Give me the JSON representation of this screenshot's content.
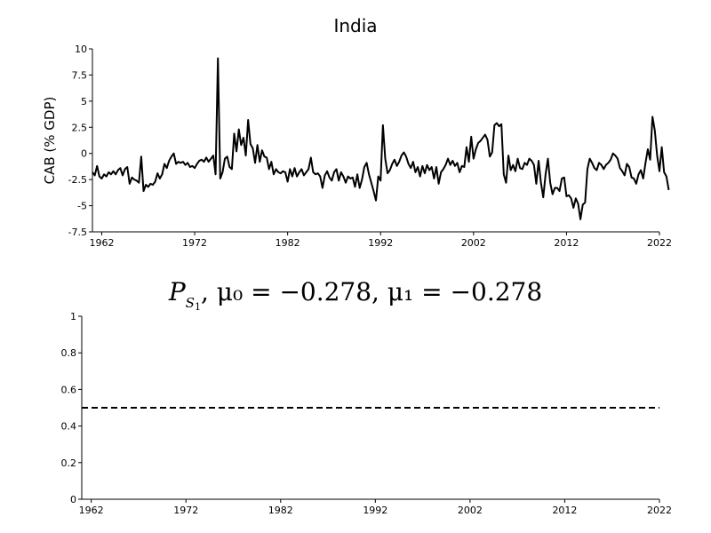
{
  "chart_data": [
    {
      "type": "line",
      "title": "India",
      "ylabel": "CAB (% GDP)",
      "xlabel": "",
      "xlim": [
        1961,
        2022
      ],
      "ylim": [
        -7.5,
        10
      ],
      "xticks": [
        1962,
        1972,
        1982,
        1992,
        2002,
        2012,
        2022
      ],
      "yticks": [
        -7.5,
        -5,
        -2.5,
        0,
        2.5,
        5,
        7.5,
        10
      ],
      "ytick_labels": [
        "-7.5",
        "-5",
        "-2.5",
        "0",
        "2.5",
        "5",
        "7.5",
        "10"
      ],
      "grid": false,
      "color": "#000000",
      "series": [
        {
          "values": [
            [
              1961.0,
              -1.8
            ],
            [
              1961.25,
              -2.1
            ],
            [
              1961.5,
              -1.2
            ],
            [
              1961.75,
              -2.2
            ],
            [
              1962.0,
              -2.4
            ],
            [
              1962.25,
              -2.0
            ],
            [
              1962.5,
              -2.2
            ],
            [
              1962.75,
              -1.8
            ],
            [
              1963.0,
              -2.0
            ],
            [
              1963.25,
              -1.7
            ],
            [
              1963.5,
              -2.0
            ],
            [
              1963.75,
              -1.6
            ],
            [
              1964.0,
              -1.4
            ],
            [
              1964.25,
              -2.1
            ],
            [
              1964.5,
              -1.5
            ],
            [
              1964.75,
              -1.3
            ],
            [
              1965.0,
              -2.9
            ],
            [
              1965.25,
              -2.3
            ],
            [
              1965.5,
              -2.5
            ],
            [
              1965.75,
              -2.6
            ],
            [
              1966.0,
              -2.8
            ],
            [
              1966.25,
              -0.3
            ],
            [
              1966.5,
              -3.6
            ],
            [
              1966.75,
              -3.0
            ],
            [
              1967.0,
              -3.2
            ],
            [
              1967.25,
              -2.9
            ],
            [
              1967.5,
              -3.0
            ],
            [
              1967.75,
              -2.7
            ],
            [
              1968.0,
              -1.9
            ],
            [
              1968.25,
              -2.4
            ],
            [
              1968.5,
              -2.0
            ],
            [
              1968.75,
              -1.0
            ],
            [
              1969.0,
              -1.4
            ],
            [
              1969.25,
              -0.7
            ],
            [
              1969.5,
              -0.3
            ],
            [
              1969.75,
              0.0
            ],
            [
              1970.0,
              -1.0
            ],
            [
              1970.25,
              -0.8
            ],
            [
              1970.5,
              -0.9
            ],
            [
              1970.75,
              -0.8
            ],
            [
              1971.0,
              -1.1
            ],
            [
              1971.25,
              -0.9
            ],
            [
              1971.5,
              -1.3
            ],
            [
              1971.75,
              -1.2
            ],
            [
              1972.0,
              -1.4
            ],
            [
              1972.25,
              -1.0
            ],
            [
              1972.5,
              -0.7
            ],
            [
              1972.75,
              -0.6
            ],
            [
              1973.0,
              -0.8
            ],
            [
              1973.25,
              -0.4
            ],
            [
              1973.5,
              -0.8
            ],
            [
              1973.75,
              -0.5
            ],
            [
              1974.0,
              -0.2
            ],
            [
              1974.25,
              -2.0
            ],
            [
              1974.5,
              9.1
            ],
            [
              1974.75,
              -2.4
            ],
            [
              1975.0,
              -1.8
            ],
            [
              1975.25,
              -0.5
            ],
            [
              1975.5,
              -0.3
            ],
            [
              1975.75,
              -1.3
            ],
            [
              1976.0,
              -1.5
            ],
            [
              1976.25,
              1.9
            ],
            [
              1976.5,
              0.2
            ],
            [
              1976.75,
              2.3
            ],
            [
              1977.0,
              0.8
            ],
            [
              1977.25,
              1.5
            ],
            [
              1977.5,
              -0.2
            ],
            [
              1977.75,
              3.2
            ],
            [
              1978.0,
              0.9
            ],
            [
              1978.25,
              0.5
            ],
            [
              1978.5,
              -0.9
            ],
            [
              1978.75,
              0.8
            ],
            [
              1979.0,
              -0.8
            ],
            [
              1979.25,
              0.3
            ],
            [
              1979.5,
              -0.3
            ],
            [
              1979.75,
              -0.4
            ],
            [
              1980.0,
              -1.5
            ],
            [
              1980.25,
              -0.8
            ],
            [
              1980.5,
              -2.0
            ],
            [
              1980.75,
              -1.5
            ],
            [
              1981.0,
              -1.8
            ],
            [
              1981.25,
              -1.9
            ],
            [
              1981.5,
              -1.7
            ],
            [
              1981.75,
              -1.8
            ],
            [
              1982.0,
              -2.7
            ],
            [
              1982.25,
              -1.5
            ],
            [
              1982.5,
              -2.2
            ],
            [
              1982.75,
              -1.4
            ],
            [
              1983.0,
              -2.2
            ],
            [
              1983.25,
              -1.8
            ],
            [
              1983.5,
              -1.5
            ],
            [
              1983.75,
              -2.1
            ],
            [
              1984.0,
              -1.8
            ],
            [
              1984.25,
              -1.5
            ],
            [
              1984.5,
              -0.4
            ],
            [
              1984.75,
              -1.8
            ],
            [
              1985.0,
              -2.0
            ],
            [
              1985.25,
              -1.9
            ],
            [
              1985.5,
              -2.2
            ],
            [
              1985.75,
              -3.3
            ],
            [
              1986.0,
              -2.1
            ],
            [
              1986.25,
              -1.7
            ],
            [
              1986.5,
              -2.3
            ],
            [
              1986.75,
              -2.6
            ],
            [
              1987.0,
              -1.8
            ],
            [
              1987.25,
              -1.5
            ],
            [
              1987.5,
              -2.6
            ],
            [
              1987.75,
              -1.8
            ],
            [
              1988.0,
              -2.2
            ],
            [
              1988.25,
              -2.8
            ],
            [
              1988.5,
              -2.2
            ],
            [
              1988.75,
              -2.4
            ],
            [
              1989.0,
              -2.3
            ],
            [
              1989.25,
              -3.2
            ],
            [
              1989.5,
              -2.0
            ],
            [
              1989.75,
              -3.3
            ],
            [
              1990.0,
              -2.5
            ],
            [
              1990.25,
              -1.3
            ],
            [
              1990.5,
              -0.9
            ],
            [
              1990.75,
              -2.0
            ],
            [
              1991.0,
              -2.8
            ],
            [
              1991.25,
              -3.6
            ],
            [
              1991.5,
              -4.5
            ],
            [
              1991.75,
              -2.2
            ],
            [
              1992.0,
              -2.6
            ],
            [
              1992.25,
              2.7
            ],
            [
              1992.5,
              -0.5
            ],
            [
              1992.75,
              -1.9
            ],
            [
              1993.0,
              -1.6
            ],
            [
              1993.25,
              -1.0
            ],
            [
              1993.5,
              -0.6
            ],
            [
              1993.75,
              -1.2
            ],
            [
              1994.0,
              -0.8
            ],
            [
              1994.25,
              -0.2
            ],
            [
              1994.5,
              0.1
            ],
            [
              1994.75,
              -0.3
            ],
            [
              1995.0,
              -1.0
            ],
            [
              1995.25,
              -1.4
            ],
            [
              1995.5,
              -0.8
            ],
            [
              1995.75,
              -1.8
            ],
            [
              1996.0,
              -1.3
            ],
            [
              1996.25,
              -2.2
            ],
            [
              1996.5,
              -1.2
            ],
            [
              1996.75,
              -1.9
            ],
            [
              1997.0,
              -1.1
            ],
            [
              1997.25,
              -1.6
            ],
            [
              1997.5,
              -1.3
            ],
            [
              1997.75,
              -2.4
            ],
            [
              1998.0,
              -1.3
            ],
            [
              1998.25,
              -2.9
            ],
            [
              1998.5,
              -1.8
            ],
            [
              1998.75,
              -1.5
            ],
            [
              1999.0,
              -1.1
            ],
            [
              1999.25,
              -0.5
            ],
            [
              1999.5,
              -1.1
            ],
            [
              1999.75,
              -0.7
            ],
            [
              2000.0,
              -1.2
            ],
            [
              2000.25,
              -0.9
            ],
            [
              2000.5,
              -1.8
            ],
            [
              2000.75,
              -1.2
            ],
            [
              2001.0,
              -1.3
            ],
            [
              2001.25,
              0.6
            ],
            [
              2001.5,
              -0.8
            ],
            [
              2001.75,
              1.6
            ],
            [
              2002.0,
              -0.5
            ],
            [
              2002.25,
              0.4
            ],
            [
              2002.5,
              1.0
            ],
            [
              2002.75,
              1.2
            ],
            [
              2003.0,
              1.5
            ],
            [
              2003.25,
              1.8
            ],
            [
              2003.5,
              1.3
            ],
            [
              2003.75,
              -0.3
            ],
            [
              2004.0,
              0.1
            ],
            [
              2004.25,
              2.7
            ],
            [
              2004.5,
              2.9
            ],
            [
              2004.75,
              2.6
            ],
            [
              2005.0,
              2.8
            ],
            [
              2005.25,
              -2.0
            ],
            [
              2005.5,
              -2.8
            ],
            [
              2005.75,
              -0.2
            ],
            [
              2006.0,
              -1.6
            ],
            [
              2006.25,
              -1.1
            ],
            [
              2006.5,
              -1.7
            ],
            [
              2006.75,
              -0.5
            ],
            [
              2007.0,
              -1.4
            ],
            [
              2007.25,
              -1.5
            ],
            [
              2007.5,
              -0.9
            ],
            [
              2007.75,
              -1.1
            ],
            [
              2008.0,
              -0.5
            ],
            [
              2008.25,
              -0.7
            ],
            [
              2008.5,
              -1.1
            ],
            [
              2008.75,
              -2.9
            ],
            [
              2009.0,
              -0.7
            ],
            [
              2009.25,
              -2.8
            ],
            [
              2009.5,
              -4.2
            ],
            [
              2009.75,
              -2.0
            ],
            [
              2010.0,
              -0.5
            ],
            [
              2010.25,
              -2.8
            ],
            [
              2010.5,
              -3.9
            ],
            [
              2010.75,
              -3.3
            ],
            [
              2011.0,
              -3.3
            ],
            [
              2011.25,
              -3.6
            ],
            [
              2011.5,
              -2.4
            ],
            [
              2011.75,
              -2.3
            ],
            [
              2012.0,
              -4.1
            ],
            [
              2012.25,
              -4.0
            ],
            [
              2012.5,
              -4.3
            ],
            [
              2012.75,
              -5.2
            ],
            [
              2013.0,
              -4.3
            ],
            [
              2013.25,
              -4.8
            ],
            [
              2013.5,
              -6.3
            ],
            [
              2013.75,
              -4.9
            ],
            [
              2014.0,
              -4.7
            ],
            [
              2014.25,
              -1.5
            ],
            [
              2014.5,
              -0.5
            ],
            [
              2014.75,
              -0.9
            ],
            [
              2015.0,
              -1.4
            ],
            [
              2015.25,
              -1.6
            ],
            [
              2015.5,
              -0.9
            ],
            [
              2015.75,
              -1.1
            ],
            [
              2016.0,
              -1.5
            ],
            [
              2016.25,
              -1.1
            ],
            [
              2016.5,
              -0.9
            ],
            [
              2016.75,
              -0.6
            ],
            [
              2017.0,
              0.0
            ],
            [
              2017.25,
              -0.2
            ],
            [
              2017.5,
              -0.5
            ],
            [
              2017.75,
              -1.4
            ],
            [
              2018.0,
              -1.7
            ],
            [
              2018.25,
              -2.1
            ],
            [
              2018.5,
              -1.0
            ],
            [
              2018.75,
              -1.3
            ],
            [
              2019.0,
              -2.3
            ],
            [
              2019.25,
              -2.4
            ],
            [
              2019.5,
              -2.9
            ],
            [
              2019.75,
              -2.0
            ],
            [
              2020.0,
              -1.6
            ],
            [
              2020.25,
              -2.4
            ],
            [
              2020.5,
              -0.9
            ],
            [
              2020.75,
              0.4
            ],
            [
              2021.0,
              -0.6
            ],
            [
              2021.25,
              3.5
            ],
            [
              2021.5,
              2.2
            ],
            [
              2021.75,
              -0.2
            ],
            [
              2022.0,
              -1.7
            ],
            [
              2022.25,
              0.6
            ],
            [
              2022.5,
              -1.8
            ],
            [
              2022.75,
              -2.2
            ],
            [
              2023.0,
              -3.5
            ]
          ]
        }
      ]
    },
    {
      "type": "line",
      "title": "P_{S_1}, μ0 = −0.278, μ1 = −0.278",
      "title_math": {
        "p": "P",
        "s": "S",
        "sub1": "1",
        "rest": ", μ₀ = −0.278, μ₁ = −0.278"
      },
      "xlabel": "",
      "ylabel": "",
      "xlim": [
        1961,
        2022
      ],
      "ylim": [
        0,
        1
      ],
      "xticks": [
        1962,
        1972,
        1982,
        1992,
        2002,
        2012,
        2022
      ],
      "yticks": [
        0,
        0.2,
        0.4,
        0.6,
        0.8,
        1
      ],
      "ytick_labels": [
        "0",
        "0.2",
        "0.4",
        "0.6",
        "0.8",
        "1"
      ],
      "grid": false,
      "series": [
        {
          "style": "dashed",
          "color": "#000000",
          "values": [
            [
              1961,
              0.5
            ],
            [
              2022,
              0.5
            ]
          ]
        }
      ]
    }
  ]
}
